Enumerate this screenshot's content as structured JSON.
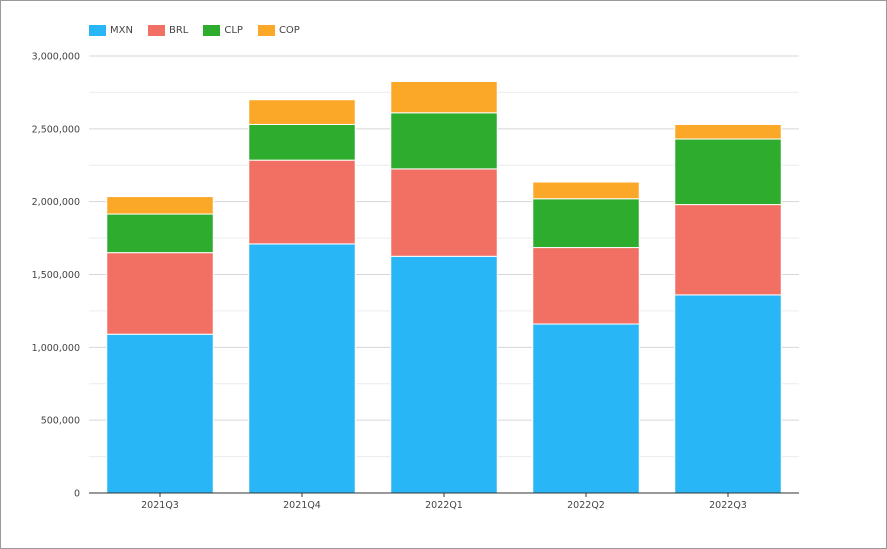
{
  "chart_data": {
    "type": "bar",
    "stacked": true,
    "title": "",
    "xlabel": "",
    "ylabel": "",
    "categories": [
      "2021Q3",
      "2021Q4",
      "2022Q1",
      "2022Q2",
      "2022Q3"
    ],
    "series": [
      {
        "name": "MXN",
        "color": "#29b6f6",
        "values": [
          1090000,
          1710000,
          1625000,
          1160000,
          1360000
        ]
      },
      {
        "name": "BRL",
        "color": "#f26f63",
        "values": [
          560000,
          575000,
          600000,
          525000,
          620000
        ]
      },
      {
        "name": "CLP",
        "color": "#2eac2e",
        "values": [
          265000,
          245000,
          385000,
          335000,
          450000
        ]
      },
      {
        "name": "COP",
        "color": "#fba829",
        "values": [
          120000,
          170000,
          215000,
          115000,
          100000
        ]
      }
    ],
    "ylim": [
      0,
      3000000
    ],
    "yticks": [
      0,
      500000,
      1000000,
      1500000,
      2000000,
      2500000,
      3000000
    ],
    "ytick_labels": [
      "0",
      "500,000",
      "1,000,000",
      "1,500,000",
      "2,000,000",
      "2,500,000",
      "3,000,000"
    ],
    "grid": true,
    "legend": "top-left"
  }
}
